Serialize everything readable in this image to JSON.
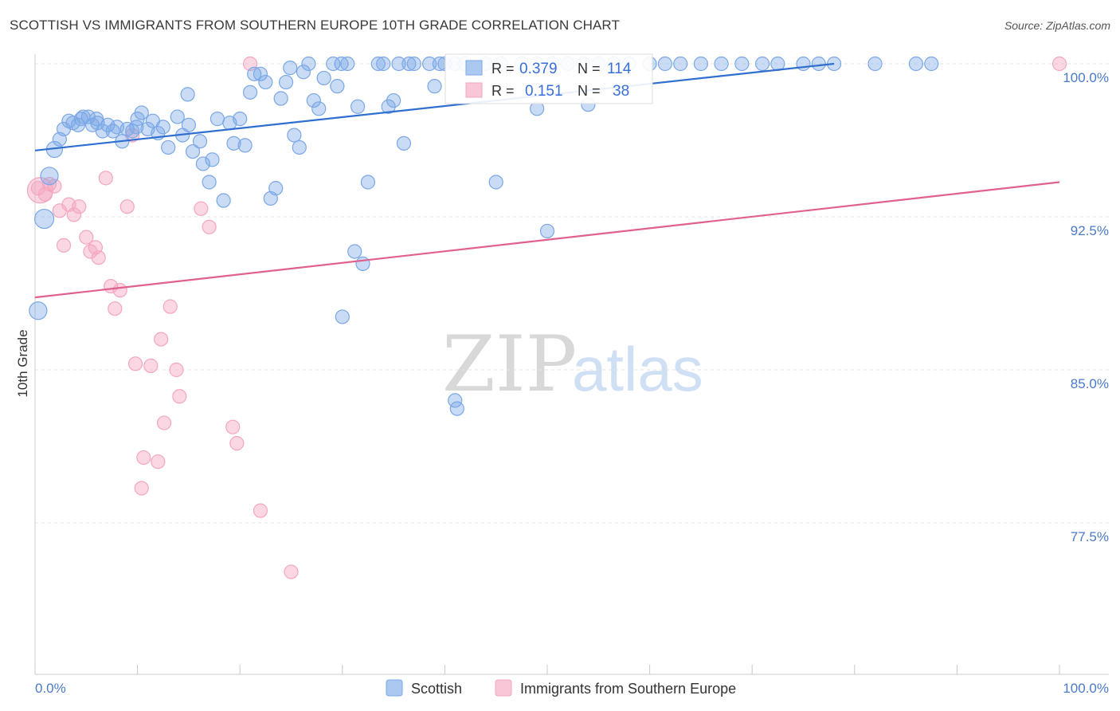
{
  "title": "SCOTTISH VS IMMIGRANTS FROM SOUTHERN EUROPE 10TH GRADE CORRELATION CHART",
  "source": "Source: ZipAtlas.com",
  "watermark": {
    "zip": "ZIP",
    "atlas": "atlas"
  },
  "colors": {
    "blue": "#7aa7e6",
    "blue_line": "#2f6fd0",
    "pink": "#f4a6c1",
    "pink_line": "#e0608f",
    "grid": "#e3e3e3",
    "axis_label": "#4a7ac8"
  },
  "legend_stats": {
    "rows": [
      {
        "r_label": "R =",
        "r_value": "0.379",
        "n_label": "N =",
        "n_value": "114"
      },
      {
        "r_label": "R =",
        "r_value": "0.151",
        "n_label": "N =",
        "n_value": "38"
      }
    ]
  },
  "legend_bottom": {
    "series1": "Scottish",
    "series2": "Immigrants from Southern Europe"
  },
  "chart_data": {
    "type": "scatter",
    "title": "SCOTTISH VS IMMIGRANTS FROM SOUTHERN EUROPE 10TH GRADE CORRELATION CHART",
    "xlabel": "",
    "ylabel": "10th Grade",
    "xlim": [
      0,
      100
    ],
    "ylim": [
      71.0,
      100.7
    ],
    "x_tick_labels": [
      "0.0%",
      "100.0%"
    ],
    "y_ticks": [
      100.0,
      92.5,
      85.0,
      77.5
    ],
    "y_tick_labels": [
      "100.0%",
      "92.5%",
      "85.0%",
      "77.5%"
    ],
    "series": [
      {
        "name": "Scottish",
        "r": 0.379,
        "n": 114,
        "trend": {
          "x0": 0,
          "y0": 95.75,
          "x1": 78,
          "y1": 100.0
        },
        "points": [
          [
            0.3,
            87.9
          ],
          [
            0.9,
            92.4
          ],
          [
            1.4,
            94.5
          ],
          [
            1.9,
            95.8
          ],
          [
            2.4,
            96.3
          ],
          [
            2.8,
            96.8
          ],
          [
            3.3,
            97.2
          ],
          [
            3.7,
            97.1
          ],
          [
            4.2,
            97.0
          ],
          [
            4.7,
            97.4
          ],
          [
            5.2,
            97.4
          ],
          [
            5.6,
            97.0
          ],
          [
            6.1,
            97.1
          ],
          [
            6.6,
            96.7
          ],
          [
            7.1,
            97.0
          ],
          [
            7.6,
            96.7
          ],
          [
            8.0,
            96.9
          ],
          [
            8.5,
            96.2
          ],
          [
            9.0,
            96.8
          ],
          [
            9.5,
            96.7
          ],
          [
            9.9,
            96.9
          ],
          [
            10.4,
            97.6
          ],
          [
            11.0,
            96.8
          ],
          [
            11.5,
            97.2
          ],
          [
            12.0,
            96.6
          ],
          [
            12.5,
            96.9
          ],
          [
            13.0,
            95.9
          ],
          [
            13.9,
            97.4
          ],
          [
            14.4,
            96.5
          ],
          [
            14.9,
            98.5
          ],
          [
            15.4,
            95.7
          ],
          [
            16.1,
            96.2
          ],
          [
            16.4,
            95.1
          ],
          [
            17.0,
            94.2
          ],
          [
            17.3,
            95.3
          ],
          [
            17.8,
            97.3
          ],
          [
            18.4,
            93.3
          ],
          [
            19.0,
            97.1
          ],
          [
            19.4,
            96.1
          ],
          [
            20.0,
            97.3
          ],
          [
            20.5,
            96.0
          ],
          [
            21.0,
            98.6
          ],
          [
            21.4,
            99.5
          ],
          [
            22.0,
            99.5
          ],
          [
            22.5,
            99.1
          ],
          [
            23.0,
            93.4
          ],
          [
            23.5,
            93.9
          ],
          [
            24.0,
            98.3
          ],
          [
            24.5,
            99.1
          ],
          [
            24.9,
            99.8
          ],
          [
            25.3,
            96.5
          ],
          [
            25.8,
            95.9
          ],
          [
            26.2,
            99.6
          ],
          [
            26.7,
            100.0
          ],
          [
            27.2,
            98.2
          ],
          [
            27.7,
            97.8
          ],
          [
            28.2,
            99.3
          ],
          [
            29.1,
            100.0
          ],
          [
            29.5,
            98.9
          ],
          [
            29.9,
            100.0
          ],
          [
            30.5,
            100.0
          ],
          [
            31.5,
            97.9
          ],
          [
            31.2,
            90.8
          ],
          [
            32.0,
            90.2
          ],
          [
            32.5,
            94.2
          ],
          [
            33.5,
            100.0
          ],
          [
            34.0,
            100.0
          ],
          [
            34.5,
            97.9
          ],
          [
            35.0,
            98.2
          ],
          [
            35.5,
            100.0
          ],
          [
            36.0,
            96.1
          ],
          [
            36.5,
            100.0
          ],
          [
            37.0,
            100.0
          ],
          [
            38.5,
            100.0
          ],
          [
            39.0,
            98.9
          ],
          [
            39.5,
            100.0
          ],
          [
            40.0,
            100.0
          ],
          [
            41.0,
            100.0
          ],
          [
            42.0,
            100.0
          ],
          [
            44.0,
            100.0
          ],
          [
            45.5,
            100.0
          ],
          [
            47.5,
            100.0
          ],
          [
            49.0,
            100.0
          ],
          [
            50.5,
            100.0
          ],
          [
            52.0,
            100.0
          ],
          [
            53.5,
            100.0
          ],
          [
            55.0,
            100.0
          ],
          [
            56.5,
            100.0
          ],
          [
            58.0,
            100.0
          ],
          [
            60.0,
            100.0
          ],
          [
            61.5,
            100.0
          ],
          [
            63.0,
            100.0
          ],
          [
            65.0,
            100.0
          ],
          [
            67.0,
            100.0
          ],
          [
            69.0,
            100.0
          ],
          [
            71.0,
            100.0
          ],
          [
            72.5,
            100.0
          ],
          [
            75.0,
            100.0
          ],
          [
            76.5,
            100.0
          ],
          [
            78.0,
            100.0
          ],
          [
            82.0,
            100.0
          ],
          [
            86.0,
            100.0
          ],
          [
            87.5,
            100.0
          ],
          [
            49.0,
            97.8
          ],
          [
            54.0,
            98.0
          ],
          [
            50.0,
            91.8
          ],
          [
            45.0,
            94.2
          ],
          [
            30.0,
            87.6
          ],
          [
            41.0,
            83.5
          ],
          [
            41.2,
            83.1
          ],
          [
            15.0,
            97.0
          ],
          [
            10.0,
            97.3
          ],
          [
            6.0,
            97.3
          ],
          [
            4.5,
            97.3
          ]
        ]
      },
      {
        "name": "Immigrants from Southern Europe",
        "r": 0.151,
        "n": 38,
        "trend": {
          "x0": 0,
          "y0": 88.55,
          "x1": 100,
          "y1": 94.2
        },
        "points": [
          [
            0.5,
            93.8
          ],
          [
            1.4,
            94.1
          ],
          [
            1.9,
            94.0
          ],
          [
            2.4,
            92.8
          ],
          [
            2.8,
            91.1
          ],
          [
            3.3,
            93.1
          ],
          [
            3.8,
            92.6
          ],
          [
            4.3,
            93.0
          ],
          [
            5.0,
            91.5
          ],
          [
            5.4,
            90.8
          ],
          [
            5.9,
            91.0
          ],
          [
            6.2,
            90.5
          ],
          [
            6.9,
            94.4
          ],
          [
            7.4,
            89.1
          ],
          [
            7.8,
            88.0
          ],
          [
            8.3,
            88.9
          ],
          [
            9.0,
            93.0
          ],
          [
            9.5,
            96.5
          ],
          [
            9.8,
            85.3
          ],
          [
            10.6,
            80.7
          ],
          [
            10.4,
            79.2
          ],
          [
            11.3,
            85.2
          ],
          [
            12.0,
            80.5
          ],
          [
            12.3,
            86.5
          ],
          [
            12.6,
            82.4
          ],
          [
            13.2,
            88.1
          ],
          [
            13.8,
            85.0
          ],
          [
            14.1,
            83.7
          ],
          [
            16.2,
            92.9
          ],
          [
            17.0,
            92.0
          ],
          [
            19.3,
            82.2
          ],
          [
            19.7,
            81.4
          ],
          [
            21.0,
            100.0
          ],
          [
            22.0,
            78.1
          ],
          [
            25.0,
            75.1
          ],
          [
            100,
            100.0
          ],
          [
            1.0,
            93.6
          ],
          [
            0.3,
            93.9
          ]
        ]
      }
    ]
  }
}
